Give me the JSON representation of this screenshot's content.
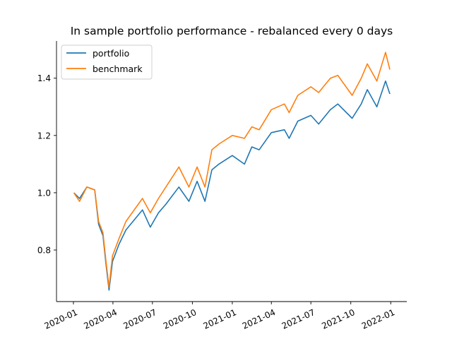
{
  "chart_data": {
    "type": "line",
    "title": "In sample portfolio performance - rebalanced every 0 days",
    "xlabel": "",
    "ylabel": "",
    "x_ticks": [
      "2020-01",
      "2020-04",
      "2020-07",
      "2020-10",
      "2021-01",
      "2021-04",
      "2021-07",
      "2021-10",
      "2022-01"
    ],
    "y_ticks": [
      "0.8",
      "1.0",
      "1.2",
      "1.4"
    ],
    "xlim": [
      "2019-11-23",
      "2022-02-07"
    ],
    "ylim": [
      0.62,
      1.53
    ],
    "grid": false,
    "legend_position": "top-left",
    "x": [
      "2020-01-02",
      "2020-01-15",
      "2020-02-01",
      "2020-02-19",
      "2020-02-28",
      "2020-03-09",
      "2020-03-16",
      "2020-03-23",
      "2020-03-31",
      "2020-04-15",
      "2020-05-01",
      "2020-06-08",
      "2020-06-26",
      "2020-07-15",
      "2020-08-01",
      "2020-08-31",
      "2020-09-23",
      "2020-10-12",
      "2020-10-30",
      "2020-11-15",
      "2020-12-01",
      "2021-01-01",
      "2021-01-29",
      "2021-02-15",
      "2021-03-04",
      "2021-04-01",
      "2021-05-01",
      "2021-05-12",
      "2021-06-01",
      "2021-07-01",
      "2021-07-19",
      "2021-08-15",
      "2021-09-01",
      "2021-10-04",
      "2021-10-25",
      "2021-11-08",
      "2021-11-30",
      "2021-12-20",
      "2021-12-30"
    ],
    "series": [
      {
        "name": "portfolio",
        "color": "#1f77b4",
        "values": [
          1.0,
          0.98,
          1.02,
          1.01,
          0.89,
          0.85,
          0.75,
          0.66,
          0.76,
          0.82,
          0.87,
          0.94,
          0.88,
          0.93,
          0.96,
          1.02,
          0.97,
          1.04,
          0.97,
          1.08,
          1.1,
          1.13,
          1.1,
          1.16,
          1.15,
          1.21,
          1.22,
          1.19,
          1.25,
          1.27,
          1.24,
          1.29,
          1.31,
          1.26,
          1.31,
          1.36,
          1.3,
          1.39,
          1.345
        ]
      },
      {
        "name": "benchmark",
        "color": "#ff7f0e",
        "values": [
          1.0,
          0.97,
          1.02,
          1.01,
          0.9,
          0.86,
          0.76,
          0.67,
          0.78,
          0.84,
          0.9,
          0.98,
          0.93,
          0.98,
          1.02,
          1.09,
          1.02,
          1.09,
          1.02,
          1.15,
          1.17,
          1.2,
          1.19,
          1.23,
          1.22,
          1.29,
          1.31,
          1.28,
          1.34,
          1.37,
          1.35,
          1.4,
          1.41,
          1.34,
          1.4,
          1.45,
          1.39,
          1.49,
          1.43
        ]
      }
    ]
  }
}
